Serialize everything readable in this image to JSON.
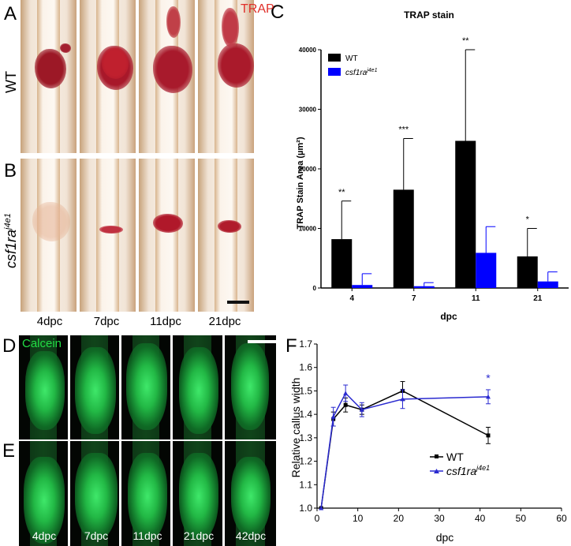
{
  "panels": {
    "A": "A",
    "B": "B",
    "C": "C",
    "D": "D",
    "E": "E",
    "F": "F"
  },
  "photo_labels": {
    "trap": "TRAP",
    "calcein": "Calcein",
    "wt": "WT",
    "mutant_prefix": "csf1ra",
    "mutant_sup": "j4e1"
  },
  "trap_columns": [
    "4dpc",
    "7dpc",
    "11dpc",
    "21dpc"
  ],
  "calcein_columns": [
    "4dpc",
    "7dpc",
    "11dpc",
    "21dpc",
    "42dpc"
  ],
  "colors": {
    "wt": "#000000",
    "mutant": "#0000ff",
    "mutant_line": "#2a2ad0",
    "trap_red": "#e0302a",
    "calcein_green": "#22dd44"
  },
  "chart_data": [
    {
      "type": "bar",
      "title": "TRAP stain",
      "xlabel": "dpc",
      "ylabel": "TRAP Stain Area (µm²)",
      "categories": [
        "4",
        "7",
        "11",
        "21"
      ],
      "ylim": [
        0,
        40000
      ],
      "yticks": [
        "0",
        "10000",
        "20000",
        "30000",
        "40000"
      ],
      "legend_position": "top-left",
      "series": [
        {
          "name": "WT",
          "values": [
            8200,
            16500,
            24700,
            5300
          ],
          "error": [
            6400,
            8600,
            15300,
            4700
          ]
        },
        {
          "name": "csf1ra j4e1",
          "values": [
            500,
            300,
            5900,
            1100
          ],
          "error": [
            1900,
            600,
            4400,
            1600
          ]
        }
      ],
      "significance": [
        "**",
        "***",
        "**",
        "*"
      ]
    },
    {
      "type": "line",
      "xlabel": "dpc",
      "ylabel": "Relative callus width",
      "xlim": [
        0,
        60
      ],
      "ylim": [
        1.0,
        1.7
      ],
      "xticks": [
        "0",
        "10",
        "20",
        "30",
        "40",
        "50",
        "60"
      ],
      "yticks": [
        "1.0",
        "1.1",
        "1.2",
        "1.3",
        "1.4",
        "1.5",
        "1.6",
        "1.7"
      ],
      "legend_position": "center-right",
      "series": [
        {
          "name": "WT",
          "x": [
            1,
            4,
            7,
            11,
            21,
            42
          ],
          "y": [
            1.0,
            1.38,
            1.44,
            1.42,
            1.5,
            1.31
          ],
          "error": [
            0,
            0.03,
            0.03,
            0.02,
            0.04,
            0.035
          ]
        },
        {
          "name": "csf1ra j4e1",
          "x": [
            1,
            4,
            7,
            11,
            21,
            42
          ],
          "y": [
            1.0,
            1.39,
            1.49,
            1.42,
            1.465,
            1.475
          ],
          "error": [
            0,
            0.04,
            0.035,
            0.03,
            0.04,
            0.03
          ]
        }
      ],
      "annotation": "*"
    }
  ]
}
